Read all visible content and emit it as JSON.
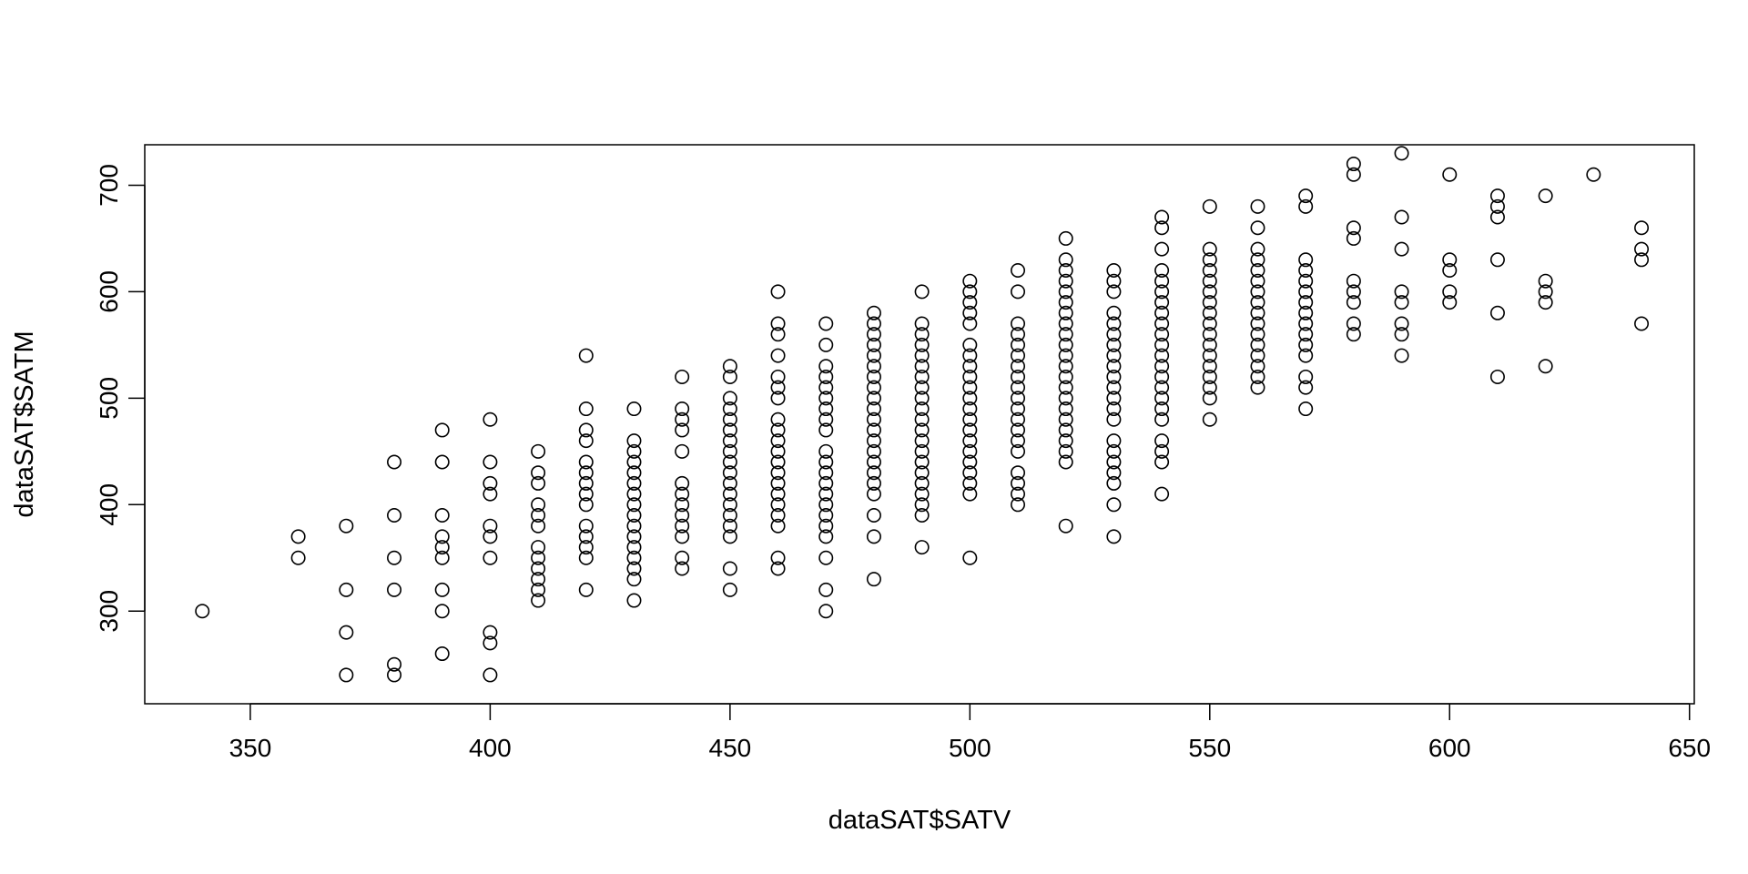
{
  "chart_data": {
    "type": "scatter",
    "title": "",
    "xlabel": "dataSAT$SATV",
    "ylabel": "dataSAT$SATM",
    "xlim": [
      328,
      651
    ],
    "ylim": [
      213,
      738
    ],
    "x_ticks": [
      350,
      400,
      450,
      500,
      550,
      600,
      650
    ],
    "y_ticks": [
      300,
      400,
      500,
      600,
      700
    ],
    "grid": false,
    "legend": "none",
    "marker": "open-circle",
    "points": [
      [
        340,
        300
      ],
      [
        360,
        350
      ],
      [
        360,
        370
      ],
      [
        370,
        240
      ],
      [
        370,
        280
      ],
      [
        370,
        320
      ],
      [
        370,
        380
      ],
      [
        380,
        240
      ],
      [
        380,
        250
      ],
      [
        380,
        320
      ],
      [
        380,
        350
      ],
      [
        380,
        390
      ],
      [
        380,
        440
      ],
      [
        390,
        260
      ],
      [
        390,
        300
      ],
      [
        390,
        320
      ],
      [
        390,
        350
      ],
      [
        390,
        360
      ],
      [
        390,
        370
      ],
      [
        390,
        390
      ],
      [
        390,
        440
      ],
      [
        390,
        470
      ],
      [
        400,
        240
      ],
      [
        400,
        270
      ],
      [
        400,
        280
      ],
      [
        400,
        350
      ],
      [
        400,
        370
      ],
      [
        400,
        380
      ],
      [
        400,
        410
      ],
      [
        400,
        420
      ],
      [
        400,
        440
      ],
      [
        400,
        480
      ],
      [
        410,
        310
      ],
      [
        410,
        320
      ],
      [
        410,
        330
      ],
      [
        410,
        340
      ],
      [
        410,
        350
      ],
      [
        410,
        360
      ],
      [
        410,
        380
      ],
      [
        410,
        390
      ],
      [
        410,
        400
      ],
      [
        410,
        420
      ],
      [
        410,
        430
      ],
      [
        410,
        450
      ],
      [
        420,
        320
      ],
      [
        420,
        350
      ],
      [
        420,
        360
      ],
      [
        420,
        370
      ],
      [
        420,
        380
      ],
      [
        420,
        400
      ],
      [
        420,
        410
      ],
      [
        420,
        420
      ],
      [
        420,
        430
      ],
      [
        420,
        440
      ],
      [
        420,
        460
      ],
      [
        420,
        470
      ],
      [
        420,
        490
      ],
      [
        420,
        540
      ],
      [
        430,
        310
      ],
      [
        430,
        330
      ],
      [
        430,
        340
      ],
      [
        430,
        350
      ],
      [
        430,
        360
      ],
      [
        430,
        370
      ],
      [
        430,
        380
      ],
      [
        430,
        390
      ],
      [
        430,
        400
      ],
      [
        430,
        410
      ],
      [
        430,
        420
      ],
      [
        430,
        430
      ],
      [
        430,
        440
      ],
      [
        430,
        450
      ],
      [
        430,
        460
      ],
      [
        430,
        490
      ],
      [
        440,
        340
      ],
      [
        440,
        350
      ],
      [
        440,
        370
      ],
      [
        440,
        380
      ],
      [
        440,
        390
      ],
      [
        440,
        400
      ],
      [
        440,
        410
      ],
      [
        440,
        420
      ],
      [
        440,
        450
      ],
      [
        440,
        470
      ],
      [
        440,
        480
      ],
      [
        440,
        490
      ],
      [
        440,
        520
      ],
      [
        450,
        320
      ],
      [
        450,
        340
      ],
      [
        450,
        370
      ],
      [
        450,
        380
      ],
      [
        450,
        390
      ],
      [
        450,
        400
      ],
      [
        450,
        410
      ],
      [
        450,
        420
      ],
      [
        450,
        430
      ],
      [
        450,
        440
      ],
      [
        450,
        450
      ],
      [
        450,
        460
      ],
      [
        450,
        470
      ],
      [
        450,
        480
      ],
      [
        450,
        490
      ],
      [
        450,
        500
      ],
      [
        450,
        520
      ],
      [
        450,
        530
      ],
      [
        460,
        340
      ],
      [
        460,
        350
      ],
      [
        460,
        380
      ],
      [
        460,
        390
      ],
      [
        460,
        400
      ],
      [
        460,
        410
      ],
      [
        460,
        420
      ],
      [
        460,
        430
      ],
      [
        460,
        440
      ],
      [
        460,
        450
      ],
      [
        460,
        460
      ],
      [
        460,
        470
      ],
      [
        460,
        480
      ],
      [
        460,
        500
      ],
      [
        460,
        510
      ],
      [
        460,
        520
      ],
      [
        460,
        540
      ],
      [
        460,
        560
      ],
      [
        460,
        570
      ],
      [
        460,
        600
      ],
      [
        470,
        300
      ],
      [
        470,
        320
      ],
      [
        470,
        350
      ],
      [
        470,
        370
      ],
      [
        470,
        380
      ],
      [
        470,
        390
      ],
      [
        470,
        400
      ],
      [
        470,
        410
      ],
      [
        470,
        420
      ],
      [
        470,
        430
      ],
      [
        470,
        440
      ],
      [
        470,
        450
      ],
      [
        470,
        470
      ],
      [
        470,
        480
      ],
      [
        470,
        490
      ],
      [
        470,
        500
      ],
      [
        470,
        510
      ],
      [
        470,
        520
      ],
      [
        470,
        530
      ],
      [
        470,
        550
      ],
      [
        470,
        570
      ],
      [
        480,
        330
      ],
      [
        480,
        370
      ],
      [
        480,
        390
      ],
      [
        480,
        410
      ],
      [
        480,
        420
      ],
      [
        480,
        430
      ],
      [
        480,
        440
      ],
      [
        480,
        450
      ],
      [
        480,
        460
      ],
      [
        480,
        470
      ],
      [
        480,
        480
      ],
      [
        480,
        490
      ],
      [
        480,
        500
      ],
      [
        480,
        510
      ],
      [
        480,
        520
      ],
      [
        480,
        530
      ],
      [
        480,
        540
      ],
      [
        480,
        550
      ],
      [
        480,
        560
      ],
      [
        480,
        570
      ],
      [
        480,
        580
      ],
      [
        490,
        360
      ],
      [
        490,
        390
      ],
      [
        490,
        400
      ],
      [
        490,
        410
      ],
      [
        490,
        420
      ],
      [
        490,
        430
      ],
      [
        490,
        440
      ],
      [
        490,
        450
      ],
      [
        490,
        460
      ],
      [
        490,
        470
      ],
      [
        490,
        480
      ],
      [
        490,
        490
      ],
      [
        490,
        500
      ],
      [
        490,
        510
      ],
      [
        490,
        520
      ],
      [
        490,
        530
      ],
      [
        490,
        540
      ],
      [
        490,
        550
      ],
      [
        490,
        560
      ],
      [
        490,
        570
      ],
      [
        490,
        600
      ],
      [
        500,
        350
      ],
      [
        500,
        410
      ],
      [
        500,
        420
      ],
      [
        500,
        430
      ],
      [
        500,
        440
      ],
      [
        500,
        450
      ],
      [
        500,
        460
      ],
      [
        500,
        470
      ],
      [
        500,
        480
      ],
      [
        500,
        490
      ],
      [
        500,
        500
      ],
      [
        500,
        510
      ],
      [
        500,
        520
      ],
      [
        500,
        530
      ],
      [
        500,
        540
      ],
      [
        500,
        550
      ],
      [
        500,
        570
      ],
      [
        500,
        580
      ],
      [
        500,
        590
      ],
      [
        500,
        600
      ],
      [
        500,
        610
      ],
      [
        510,
        400
      ],
      [
        510,
        410
      ],
      [
        510,
        420
      ],
      [
        510,
        430
      ],
      [
        510,
        450
      ],
      [
        510,
        460
      ],
      [
        510,
        470
      ],
      [
        510,
        480
      ],
      [
        510,
        490
      ],
      [
        510,
        500
      ],
      [
        510,
        510
      ],
      [
        510,
        520
      ],
      [
        510,
        530
      ],
      [
        510,
        540
      ],
      [
        510,
        550
      ],
      [
        510,
        560
      ],
      [
        510,
        570
      ],
      [
        510,
        600
      ],
      [
        510,
        620
      ],
      [
        520,
        380
      ],
      [
        520,
        440
      ],
      [
        520,
        450
      ],
      [
        520,
        460
      ],
      [
        520,
        470
      ],
      [
        520,
        480
      ],
      [
        520,
        490
      ],
      [
        520,
        500
      ],
      [
        520,
        510
      ],
      [
        520,
        520
      ],
      [
        520,
        530
      ],
      [
        520,
        540
      ],
      [
        520,
        550
      ],
      [
        520,
        560
      ],
      [
        520,
        570
      ],
      [
        520,
        580
      ],
      [
        520,
        590
      ],
      [
        520,
        600
      ],
      [
        520,
        610
      ],
      [
        520,
        620
      ],
      [
        520,
        630
      ],
      [
        520,
        650
      ],
      [
        530,
        370
      ],
      [
        530,
        400
      ],
      [
        530,
        420
      ],
      [
        530,
        430
      ],
      [
        530,
        440
      ],
      [
        530,
        450
      ],
      [
        530,
        460
      ],
      [
        530,
        480
      ],
      [
        530,
        490
      ],
      [
        530,
        500
      ],
      [
        530,
        510
      ],
      [
        530,
        520
      ],
      [
        530,
        530
      ],
      [
        530,
        540
      ],
      [
        530,
        550
      ],
      [
        530,
        560
      ],
      [
        530,
        570
      ],
      [
        530,
        580
      ],
      [
        530,
        600
      ],
      [
        530,
        610
      ],
      [
        530,
        620
      ],
      [
        540,
        410
      ],
      [
        540,
        440
      ],
      [
        540,
        450
      ],
      [
        540,
        460
      ],
      [
        540,
        480
      ],
      [
        540,
        490
      ],
      [
        540,
        500
      ],
      [
        540,
        510
      ],
      [
        540,
        520
      ],
      [
        540,
        530
      ],
      [
        540,
        540
      ],
      [
        540,
        550
      ],
      [
        540,
        560
      ],
      [
        540,
        570
      ],
      [
        540,
        580
      ],
      [
        540,
        590
      ],
      [
        540,
        600
      ],
      [
        540,
        610
      ],
      [
        540,
        620
      ],
      [
        540,
        640
      ],
      [
        540,
        660
      ],
      [
        540,
        670
      ],
      [
        550,
        480
      ],
      [
        550,
        500
      ],
      [
        550,
        510
      ],
      [
        550,
        520
      ],
      [
        550,
        530
      ],
      [
        550,
        540
      ],
      [
        550,
        550
      ],
      [
        550,
        560
      ],
      [
        550,
        570
      ],
      [
        550,
        580
      ],
      [
        550,
        590
      ],
      [
        550,
        600
      ],
      [
        550,
        610
      ],
      [
        550,
        620
      ],
      [
        550,
        630
      ],
      [
        550,
        640
      ],
      [
        550,
        680
      ],
      [
        560,
        510
      ],
      [
        560,
        520
      ],
      [
        560,
        530
      ],
      [
        560,
        540
      ],
      [
        560,
        550
      ],
      [
        560,
        560
      ],
      [
        560,
        570
      ],
      [
        560,
        580
      ],
      [
        560,
        590
      ],
      [
        560,
        600
      ],
      [
        560,
        610
      ],
      [
        560,
        620
      ],
      [
        560,
        630
      ],
      [
        560,
        640
      ],
      [
        560,
        660
      ],
      [
        560,
        680
      ],
      [
        570,
        490
      ],
      [
        570,
        510
      ],
      [
        570,
        520
      ],
      [
        570,
        540
      ],
      [
        570,
        550
      ],
      [
        570,
        560
      ],
      [
        570,
        570
      ],
      [
        570,
        580
      ],
      [
        570,
        590
      ],
      [
        570,
        600
      ],
      [
        570,
        610
      ],
      [
        570,
        620
      ],
      [
        570,
        630
      ],
      [
        570,
        680
      ],
      [
        570,
        690
      ],
      [
        580,
        560
      ],
      [
        580,
        570
      ],
      [
        580,
        590
      ],
      [
        580,
        600
      ],
      [
        580,
        610
      ],
      [
        580,
        650
      ],
      [
        580,
        660
      ],
      [
        580,
        710
      ],
      [
        580,
        720
      ],
      [
        590,
        540
      ],
      [
        590,
        560
      ],
      [
        590,
        570
      ],
      [
        590,
        590
      ],
      [
        590,
        600
      ],
      [
        590,
        640
      ],
      [
        590,
        670
      ],
      [
        590,
        730
      ],
      [
        600,
        590
      ],
      [
        600,
        600
      ],
      [
        600,
        620
      ],
      [
        600,
        630
      ],
      [
        600,
        710
      ],
      [
        610,
        520
      ],
      [
        610,
        580
      ],
      [
        610,
        630
      ],
      [
        610,
        670
      ],
      [
        610,
        680
      ],
      [
        610,
        690
      ],
      [
        620,
        530
      ],
      [
        620,
        590
      ],
      [
        620,
        600
      ],
      [
        620,
        610
      ],
      [
        620,
        690
      ],
      [
        630,
        710
      ],
      [
        640,
        570
      ],
      [
        640,
        630
      ],
      [
        640,
        640
      ],
      [
        640,
        660
      ]
    ]
  }
}
